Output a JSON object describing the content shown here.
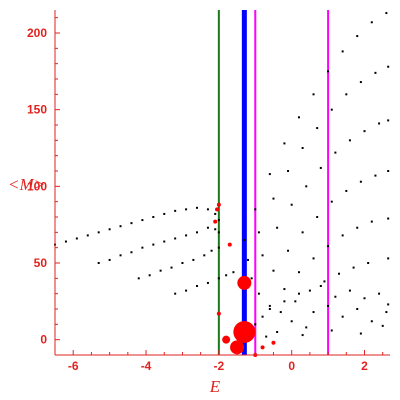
{
  "chart_data": {
    "type": "scatter",
    "xlabel": "E",
    "ylabel": "<M>",
    "xlim": [
      -6.5,
      2.7
    ],
    "ylim": [
      -10,
      215
    ],
    "x_ticks": [
      -6,
      -4,
      -2,
      0,
      2
    ],
    "y_ticks": [
      0,
      50,
      100,
      150,
      200
    ],
    "grid": false,
    "colors": {
      "axis": "#e0231f",
      "points": "#000000",
      "highlight": "#ff0000"
    },
    "vertical_lines": [
      {
        "x": -2.0,
        "color": "#1a7a1a",
        "width": "thin"
      },
      {
        "x": -1.3,
        "color": "#0000ff",
        "width": "thick"
      },
      {
        "x": -1.0,
        "color": "#ff00ff",
        "width": "thin"
      },
      {
        "x": 1.0,
        "color": "#ff00ff",
        "width": "thin"
      }
    ],
    "series": [
      {
        "points": [
          [
            -6.5,
            62
          ],
          [
            -6.2,
            64
          ],
          [
            -5.9,
            66
          ],
          [
            -5.6,
            68
          ],
          [
            -5.3,
            70
          ],
          [
            -5.0,
            72
          ],
          [
            -4.7,
            74
          ],
          [
            -4.4,
            76
          ],
          [
            -4.1,
            78
          ],
          [
            -3.8,
            80
          ],
          [
            -3.5,
            82
          ],
          [
            -3.2,
            84
          ],
          [
            -2.9,
            85
          ],
          [
            -2.6,
            86
          ],
          [
            -2.3,
            85
          ],
          [
            -2.1,
            82
          ],
          [
            -2.0,
            78
          ]
        ]
      },
      {
        "points": [
          [
            -5.3,
            50
          ],
          [
            -5.0,
            52
          ],
          [
            -4.7,
            55
          ],
          [
            -4.4,
            57
          ],
          [
            -4.1,
            60
          ],
          [
            -3.8,
            62
          ],
          [
            -3.5,
            64
          ],
          [
            -3.2,
            66
          ],
          [
            -2.9,
            68
          ],
          [
            -2.6,
            70
          ],
          [
            -2.3,
            73
          ],
          [
            -2.1,
            72
          ],
          [
            -2.0,
            70
          ]
        ]
      },
      {
        "points": [
          [
            -4.2,
            40
          ],
          [
            -3.9,
            42
          ],
          [
            -3.6,
            45
          ],
          [
            -3.3,
            47
          ],
          [
            -3.0,
            50
          ],
          [
            -2.7,
            52
          ],
          [
            -2.4,
            55
          ],
          [
            -2.2,
            58
          ],
          [
            -2.0,
            60
          ]
        ]
      },
      {
        "points": [
          [
            -3.2,
            30
          ],
          [
            -2.9,
            32
          ],
          [
            -2.6,
            35
          ],
          [
            -2.3,
            37
          ],
          [
            -2.0,
            40
          ],
          [
            -1.8,
            42
          ],
          [
            -1.6,
            44
          ]
        ]
      },
      {
        "points": [
          [
            -1.3,
            65
          ],
          [
            -1.0,
            85
          ],
          [
            -0.6,
            108
          ],
          [
            -0.2,
            128
          ],
          [
            0.2,
            145
          ],
          [
            0.6,
            160
          ],
          [
            1.0,
            175
          ],
          [
            1.4,
            188
          ],
          [
            1.8,
            198
          ],
          [
            2.2,
            207
          ],
          [
            2.6,
            213
          ]
        ]
      },
      {
        "points": [
          [
            -1.2,
            52
          ],
          [
            -0.9,
            70
          ],
          [
            -0.5,
            92
          ],
          [
            -0.1,
            110
          ],
          [
            0.3,
            125
          ],
          [
            0.7,
            138
          ],
          [
            1.1,
            150
          ],
          [
            1.5,
            160
          ],
          [
            1.9,
            168
          ],
          [
            2.3,
            174
          ],
          [
            2.65,
            178
          ]
        ]
      },
      {
        "points": [
          [
            -1.1,
            40
          ],
          [
            -0.8,
            55
          ],
          [
            -0.4,
            73
          ],
          [
            0.0,
            88
          ],
          [
            0.4,
            100
          ],
          [
            0.8,
            112
          ],
          [
            1.2,
            122
          ],
          [
            1.6,
            130
          ],
          [
            2.0,
            136
          ],
          [
            2.4,
            141
          ],
          [
            2.65,
            143
          ]
        ]
      },
      {
        "points": [
          [
            -0.9,
            30
          ],
          [
            -0.5,
            45
          ],
          [
            -0.1,
            58
          ],
          [
            0.3,
            70
          ],
          [
            0.7,
            80
          ],
          [
            1.1,
            90
          ],
          [
            1.5,
            97
          ],
          [
            1.9,
            103
          ],
          [
            2.3,
            107
          ],
          [
            2.65,
            110
          ]
        ]
      },
      {
        "points": [
          [
            -0.6,
            22
          ],
          [
            -0.2,
            33
          ],
          [
            0.2,
            44
          ],
          [
            0.6,
            53
          ],
          [
            1.0,
            61
          ],
          [
            1.4,
            68
          ],
          [
            1.8,
            73
          ],
          [
            2.2,
            77
          ],
          [
            2.65,
            79
          ]
        ]
      },
      {
        "points": [
          [
            -0.3,
            18
          ],
          [
            0.1,
            25
          ],
          [
            0.5,
            32
          ],
          [
            0.9,
            38
          ],
          [
            1.3,
            43
          ],
          [
            1.7,
            47
          ],
          [
            2.1,
            50
          ],
          [
            2.65,
            53
          ]
        ]
      },
      {
        "points": [
          [
            -1.0,
            10
          ],
          [
            -0.8,
            15
          ],
          [
            -0.6,
            20
          ],
          [
            -0.4,
            5
          ],
          [
            -0.2,
            25
          ],
          [
            0.0,
            12
          ],
          [
            0.2,
            30
          ],
          [
            0.4,
            8
          ],
          [
            0.6,
            18
          ],
          [
            0.8,
            35
          ],
          [
            1.0,
            22
          ],
          [
            1.2,
            28
          ],
          [
            1.4,
            15
          ],
          [
            1.6,
            32
          ],
          [
            1.8,
            20
          ],
          [
            2.0,
            27
          ],
          [
            2.2,
            12
          ],
          [
            2.4,
            30
          ],
          [
            2.6,
            18
          ],
          [
            2.65,
            23
          ],
          [
            -0.7,
            2
          ],
          [
            0.3,
            3
          ],
          [
            1.1,
            6
          ],
          [
            1.9,
            4
          ],
          [
            2.5,
            9
          ]
        ]
      }
    ],
    "highlight_points": [
      {
        "x": -2.0,
        "y": 88,
        "size": "small"
      },
      {
        "x": -2.05,
        "y": 85,
        "size": "small"
      },
      {
        "x": -2.1,
        "y": 77,
        "size": "small"
      },
      {
        "x": -1.7,
        "y": 62,
        "size": "small"
      },
      {
        "x": -1.3,
        "y": 37,
        "size": "large"
      },
      {
        "x": -2.0,
        "y": 17,
        "size": "small"
      },
      {
        "x": -1.3,
        "y": 5,
        "size": "xlarge"
      },
      {
        "x": -1.5,
        "y": -5,
        "size": "large"
      },
      {
        "x": -1.8,
        "y": 0,
        "size": "medium"
      },
      {
        "x": -0.8,
        "y": -5,
        "size": "small"
      },
      {
        "x": -0.5,
        "y": -2,
        "size": "small"
      },
      {
        "x": -1.0,
        "y": -10,
        "size": "small"
      }
    ]
  }
}
